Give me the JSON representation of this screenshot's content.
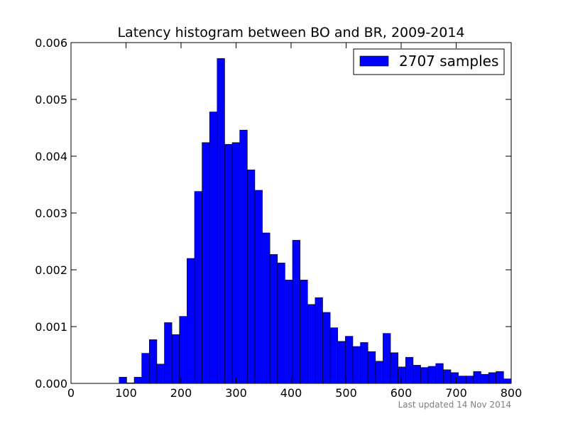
{
  "chart_data": {
    "type": "bar",
    "title": "Latency histogram between BO and BR, 2009-2014",
    "xlabel": "",
    "ylabel": "",
    "xlim": [
      0,
      800
    ],
    "ylim": [
      0,
      0.006
    ],
    "grid": false,
    "legend_position": "top-right",
    "xticks": [
      0,
      100,
      200,
      300,
      400,
      500,
      600,
      700,
      800
    ],
    "yticks": [
      0.0,
      0.001,
      0.002,
      0.003,
      0.004,
      0.005,
      0.006
    ],
    "xtick_labels": [
      "0",
      "100",
      "200",
      "300",
      "400",
      "500",
      "600",
      "700",
      "800"
    ],
    "ytick_labels": [
      "0.000",
      "0.001",
      "0.002",
      "0.003",
      "0.004",
      "0.005",
      "0.006"
    ],
    "bin_width": 13.7,
    "bin_start": 87.5,
    "series": [
      {
        "name": "2707 samples",
        "color": "#0000ff",
        "values": [
          0.00011,
          1e-05,
          0.00011,
          0.00053,
          0.00077,
          0.00034,
          0.00107,
          0.00086,
          0.00118,
          0.0022,
          0.00338,
          0.00424,
          0.00478,
          0.00572,
          0.00421,
          0.00424,
          0.00446,
          0.00376,
          0.0034,
          0.00265,
          0.00227,
          0.00212,
          0.00182,
          0.00252,
          0.00182,
          0.00139,
          0.00151,
          0.00125,
          0.00098,
          0.00074,
          0.00083,
          0.00065,
          0.00072,
          0.00056,
          0.00039,
          0.00088,
          0.00054,
          0.00029,
          0.00046,
          0.00032,
          0.00028,
          0.0003,
          0.00035,
          0.00024,
          0.00019,
          0.00013,
          0.00013,
          0.00021,
          0.00016,
          0.00019,
          0.00021,
          8e-05
        ]
      }
    ]
  },
  "footer": {
    "note": "Last updated 14 Nov 2014"
  }
}
